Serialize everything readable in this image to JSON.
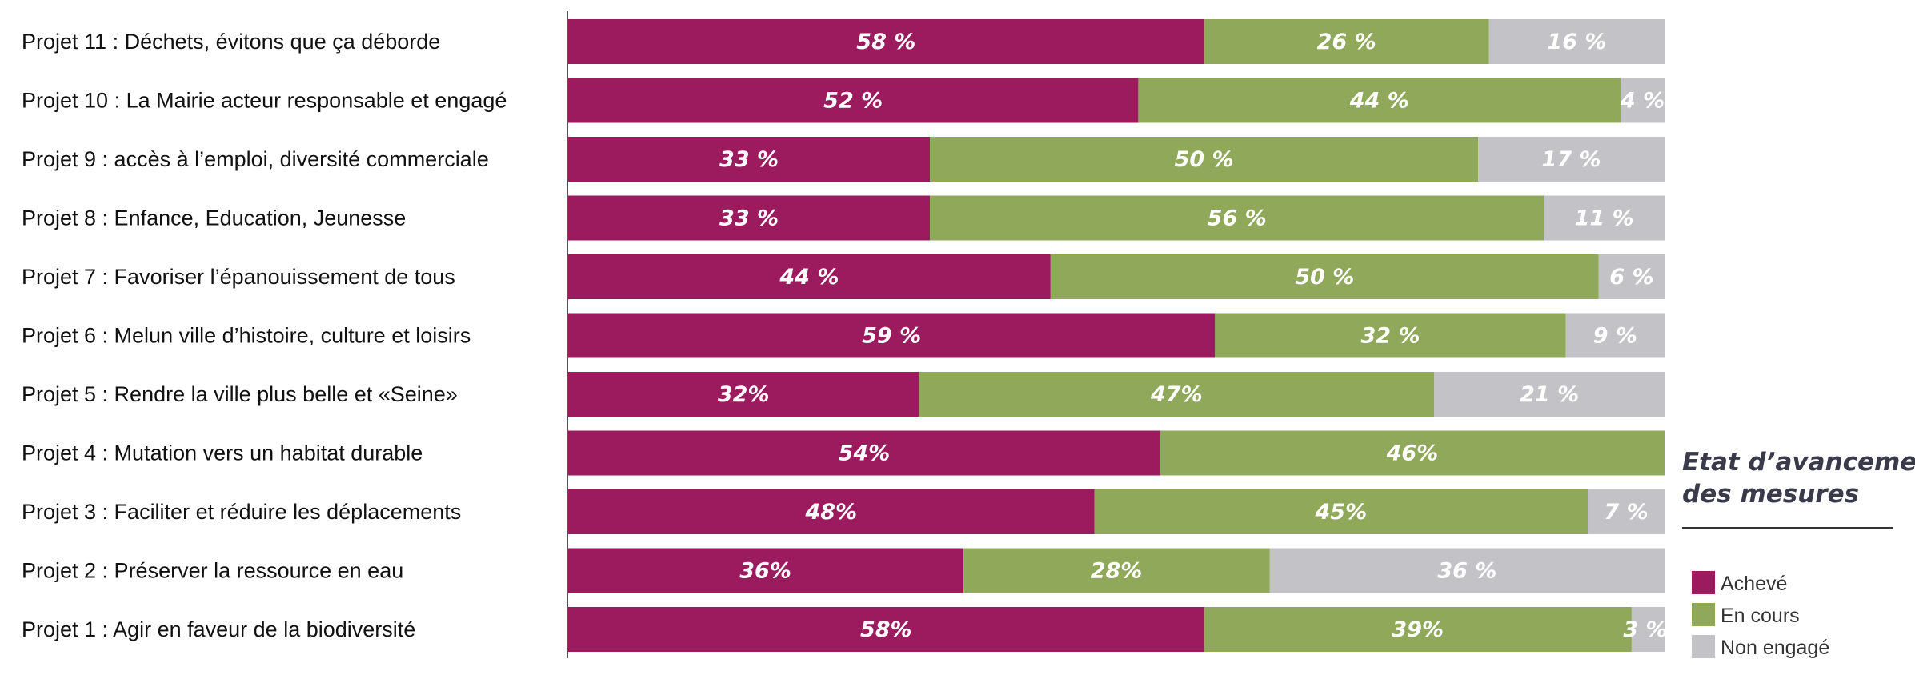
{
  "colors": {
    "achieved": "#9b1b5e",
    "in_progress": "#8fa85a",
    "not_engaged": "#c3c3c7"
  },
  "legend": {
    "title_line1": "Etat d’avancement",
    "title_line2": "des mesures",
    "items": [
      "Achevé",
      "En cours",
      "Non engagé"
    ]
  },
  "chart_data": {
    "type": "bar",
    "orientation": "horizontal",
    "stacked": true,
    "unit": "%",
    "xlim": [
      0,
      100
    ],
    "grid": false,
    "legend_position": "right",
    "categories": [
      "Projet 11 : Déchets, évitons que ça déborde",
      "Projet 10 : La Mairie acteur responsable et engagé",
      "Projet 9 : accès à l’emploi, diversité commerciale",
      "Projet 8 : Enfance, Education, Jeunesse",
      "Projet 7 : Favoriser l’épanouissement de tous",
      "Projet 6 : Melun ville d’histoire, culture et loisirs",
      "Projet 5 : Rendre la ville plus belle et «Seine»",
      "Projet 4 : Mutation vers un habitat durable",
      "Projet 3 : Faciliter et réduire les déplacements",
      "Projet 2 : Préserver la ressource en eau",
      "Projet 1 : Agir en faveur de la biodiversité"
    ],
    "series": [
      {
        "name": "Achevé",
        "values": [
          58,
          52,
          33,
          33,
          44,
          59,
          32,
          54,
          48,
          36,
          58
        ],
        "labels": [
          "58 %",
          "52 %",
          "33 %",
          "33 %",
          "44 %",
          "59 %",
          "32%",
          "54%",
          "48%",
          "36%",
          "58%"
        ]
      },
      {
        "name": "En cours",
        "values": [
          26,
          44,
          50,
          56,
          50,
          32,
          47,
          46,
          45,
          28,
          39
        ],
        "labels": [
          "26 %",
          "44 %",
          "50 %",
          "56 %",
          "50 %",
          "32 %",
          "47%",
          "46%",
          "45%",
          "28%",
          "39%"
        ]
      },
      {
        "name": "Non engagé",
        "values": [
          16,
          4,
          17,
          11,
          6,
          9,
          21,
          0,
          7,
          36,
          3
        ],
        "labels": [
          "16 %",
          "4 %",
          "17 %",
          "11 %",
          "6 %",
          "9 %",
          "21 %",
          "",
          "7 %",
          "36 %",
          "3 %"
        ]
      }
    ]
  }
}
